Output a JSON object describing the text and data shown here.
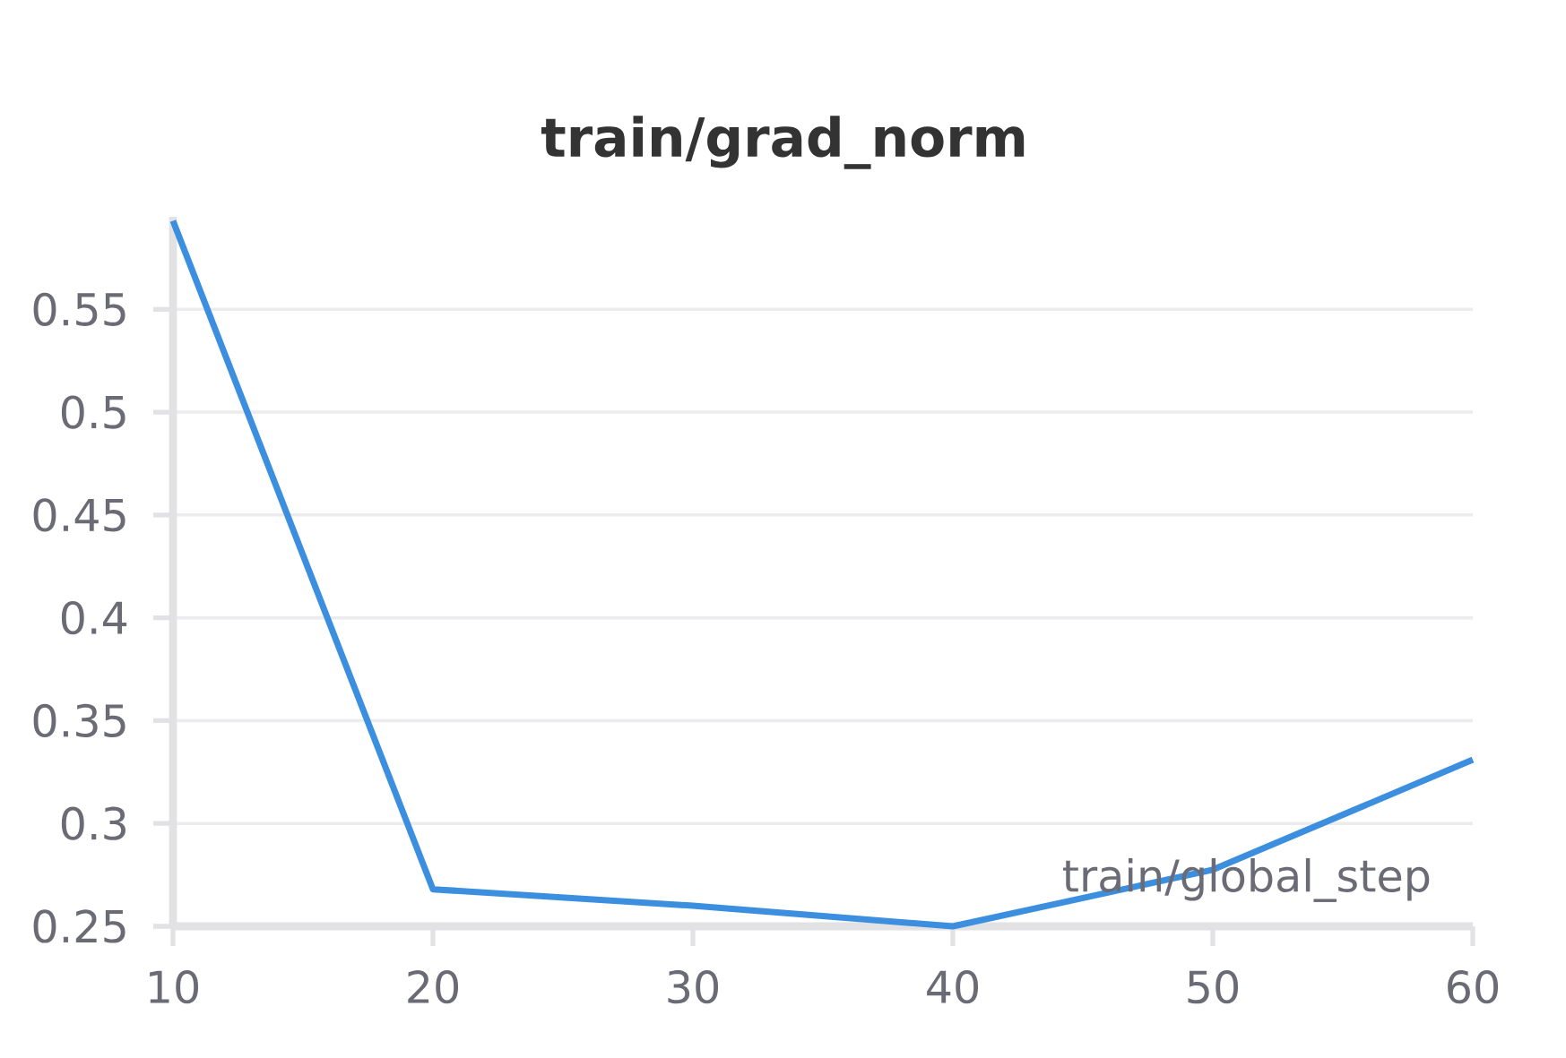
{
  "chart_data": {
    "type": "line",
    "title": "train/grad_norm",
    "xlabel": "train/global_step",
    "x": [
      10,
      20,
      30,
      40,
      50,
      60
    ],
    "series": [
      {
        "color": "#3b8fde",
        "values": [
          0.593,
          0.268,
          0.26,
          0.25,
          0.2775,
          0.331
        ]
      }
    ],
    "xlim": [
      10,
      60
    ],
    "ylim": [
      0.25,
      0.595
    ],
    "xticks": [
      10,
      20,
      30,
      40,
      50,
      60
    ],
    "yticks": [
      0.25,
      0.3,
      0.35,
      0.4,
      0.45,
      0.5,
      0.55
    ],
    "grid": "y",
    "marker": "none",
    "line_style": "solid"
  }
}
